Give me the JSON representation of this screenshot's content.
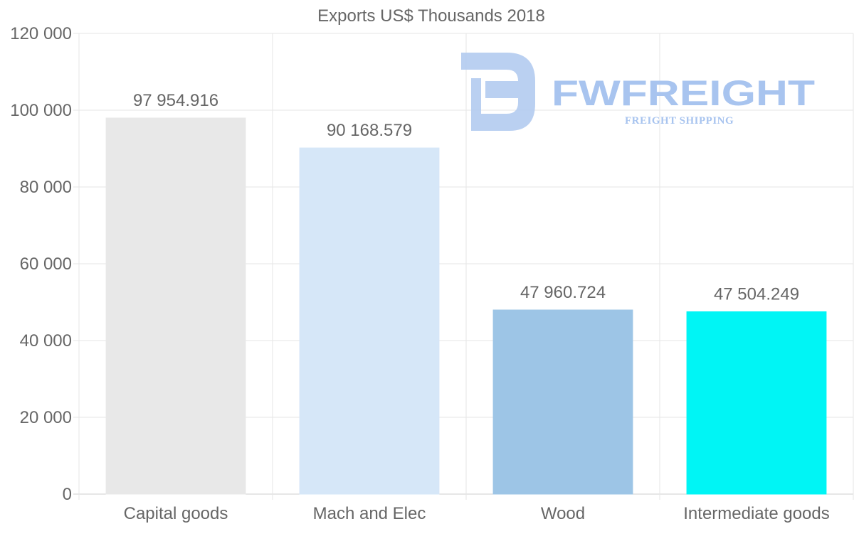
{
  "chart_data": {
    "type": "bar",
    "title": "Exports US$ Thousands 2018",
    "categories": [
      "Capital goods",
      "Mach and Elec",
      "Wood",
      "Intermediate goods"
    ],
    "values": [
      97954.916,
      90168.579,
      47960.724,
      47504.249
    ],
    "data_labels": [
      "97 954.916",
      "90 168.579",
      "47 960.724",
      "47 504.249"
    ],
    "bar_colors": [
      "#e8e8e8",
      "#d6e7f8",
      "#9dc5e6",
      "#00f5f5"
    ],
    "ylim": [
      0,
      120000
    ],
    "yticks": [
      0,
      20000,
      40000,
      60000,
      80000,
      100000,
      120000
    ],
    "ytick_labels": [
      "0",
      "20 000",
      "40 000",
      "60 000",
      "80 000",
      "100 000",
      "120 000"
    ],
    "xlabel": "",
    "ylabel": "",
    "grid": true
  },
  "watermark": {
    "brand": "FWFREIGHT",
    "tagline": "FREIGHT SHIPPING",
    "logo_icon": "fw-logo-icon",
    "color": "#a8c4ef"
  }
}
